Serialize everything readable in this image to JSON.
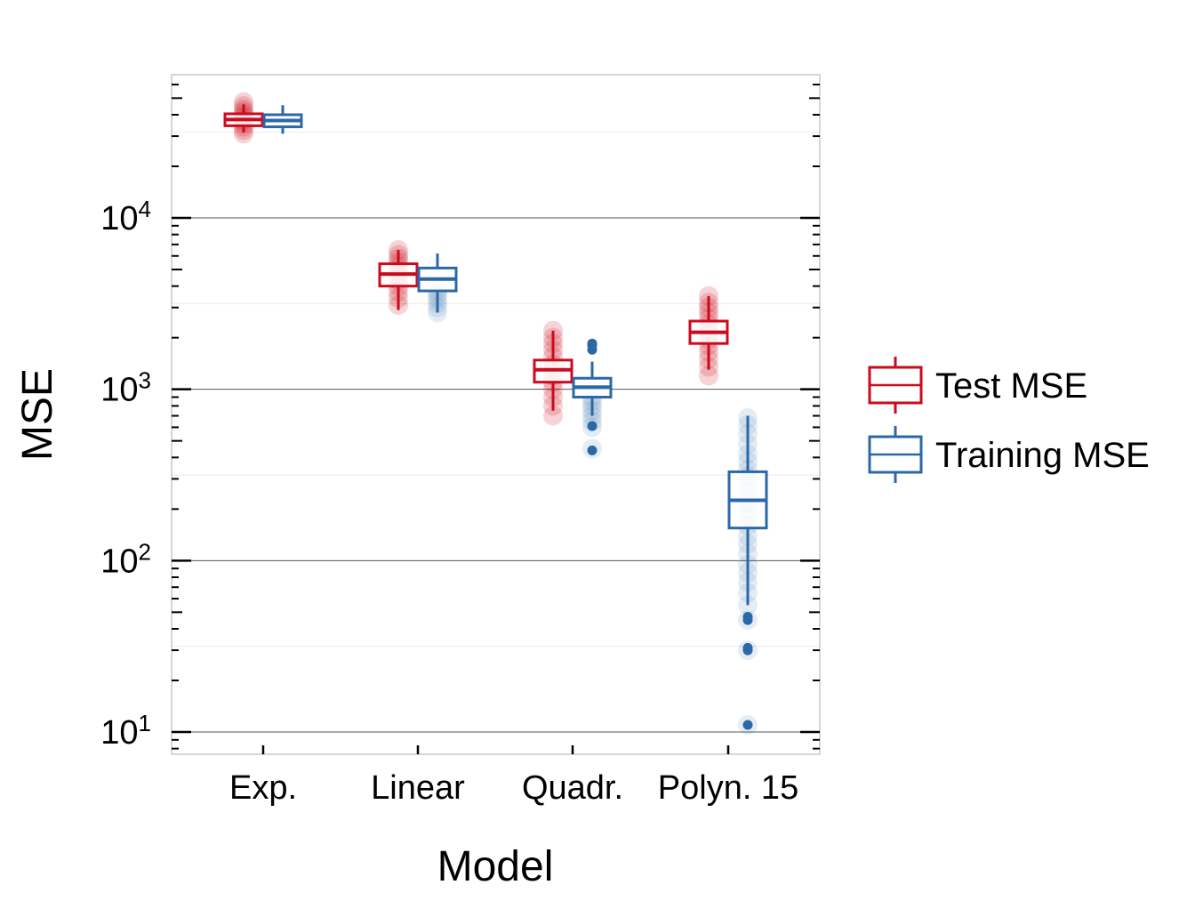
{
  "chart_data": {
    "type": "boxplot",
    "xlabel": "Model",
    "ylabel": "MSE",
    "categories": [
      "Exp.",
      "Linear",
      "Quadr.",
      "Polyn. 15"
    ],
    "y_scale": "log10",
    "ylim": [
      7.5,
      80000
    ],
    "y_ticks": [
      {
        "value": 10,
        "base": "10",
        "exp": "1"
      },
      {
        "value": 100,
        "base": "10",
        "exp": "2"
      },
      {
        "value": 1000,
        "base": "10",
        "exp": "3"
      },
      {
        "value": 10000,
        "base": "10",
        "exp": "4"
      }
    ],
    "grid": true,
    "legend_position": "right",
    "series": [
      {
        "name": "Test MSE",
        "color": "#cc0a1e",
        "boxes": [
          {
            "q1": 34500,
            "median": 37500,
            "q3": 40500,
            "whisker_low": 31500,
            "whisker_high": 46000,
            "points": [
              31000,
              32500,
              34000,
              35500,
              37000,
              38500,
              40000,
              41500,
              43000,
              45000,
              47500
            ],
            "outliers": []
          },
          {
            "q1": 4000,
            "median": 4700,
            "q3": 5400,
            "whisker_low": 2900,
            "whisker_high": 6500,
            "points": [
              3100,
              3400,
              3700,
              4000,
              4300,
              4600,
              4900,
              5200,
              5500,
              5800,
              6100,
              6500
            ],
            "outliers": []
          },
          {
            "q1": 1100,
            "median": 1300,
            "q3": 1480,
            "whisker_low": 750,
            "whisker_high": 2200,
            "points": [
              700,
              800,
              900,
              1000,
              1100,
              1200,
              1300,
              1400,
              1550,
              1700,
              1850,
              2000,
              2200
            ],
            "outliers": []
          },
          {
            "q1": 1850,
            "median": 2150,
            "q3": 2500,
            "whisker_low": 1300,
            "whisker_high": 3500,
            "points": [
              1200,
              1350,
              1500,
              1650,
              1800,
              1950,
              2100,
              2250,
              2400,
              2600,
              2800,
              3000,
              3200,
              3500
            ],
            "outliers": []
          }
        ]
      },
      {
        "name": "Training MSE",
        "color": "#2b68a8",
        "boxes": [
          {
            "q1": 34000,
            "median": 37000,
            "q3": 40000,
            "whisker_low": 31000,
            "whisker_high": 45500,
            "points": [],
            "outliers": []
          },
          {
            "q1": 3750,
            "median": 4400,
            "q3": 5100,
            "whisker_low": 2800,
            "whisker_high": 6200,
            "points": [
              2800,
              3000,
              3200,
              3400,
              3600,
              3800
            ],
            "outliers": []
          },
          {
            "q1": 900,
            "median": 1030,
            "q3": 1160,
            "whisker_low": 700,
            "whisker_high": 1450,
            "points": [
              450,
              600,
              650,
              700,
              750,
              800,
              850,
              900
            ],
            "outliers": [
              440,
              610,
              1700,
              1800,
              1850
            ]
          },
          {
            "q1": 155,
            "median": 225,
            "q3": 330,
            "whisker_low": 55,
            "whisker_high": 700,
            "points": [
              11,
              30,
              45,
              55,
              65,
              75,
              85,
              95,
              110,
              125,
              140,
              160,
              180,
              200,
              220,
              250,
              280,
              310,
              340,
              380,
              420,
              480,
              550,
              620,
              680
            ],
            "outliers": [
              11,
              30,
              31,
              45,
              47
            ]
          }
        ]
      }
    ]
  }
}
